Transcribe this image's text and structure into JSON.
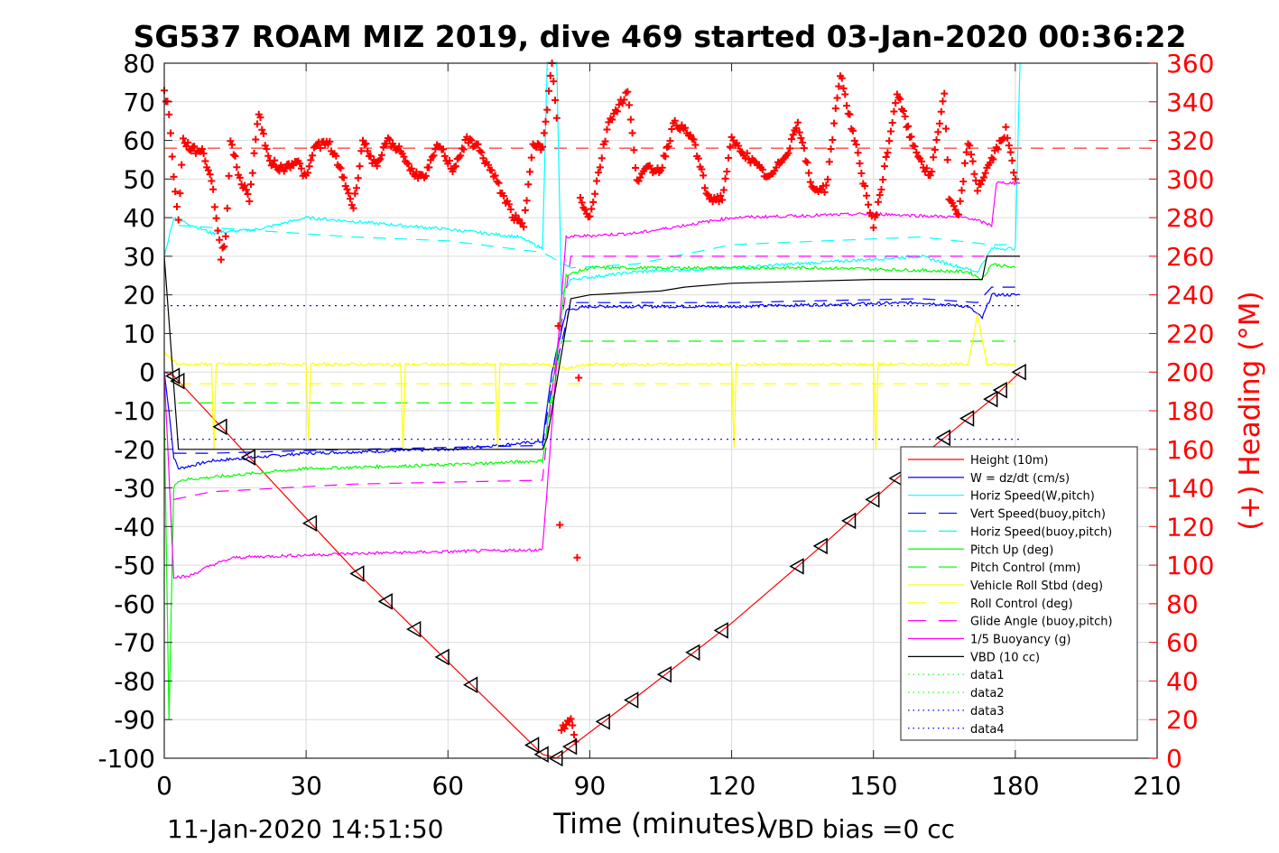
{
  "chart_data": {
    "type": "line",
    "title": "SG537 ROAM MIZ 2019, dive 469 started 03-Jan-2020 00:36:22",
    "xlabel": "Time (minutes)",
    "ylabel_right": "(+) Heading (°M)",
    "footer_left": "11-Jan-2020 14:51:50",
    "footer_right": "VBD bias =0 cc",
    "xlim": [
      0,
      210
    ],
    "ylim": [
      -100,
      80
    ],
    "ylim_right": [
      0,
      360
    ],
    "xticks": [
      "0",
      "30",
      "60",
      "90",
      "120",
      "150",
      "180",
      "210"
    ],
    "yticks": [
      "80",
      "70",
      "60",
      "50",
      "40",
      "30",
      "20",
      "10",
      "0",
      "-10",
      "-20",
      "-30",
      "-40",
      "-50",
      "-60",
      "-70",
      "-80",
      "-90",
      "-100"
    ],
    "yticks_right": [
      "360",
      "340",
      "320",
      "300",
      "280",
      "260",
      "240",
      "220",
      "200",
      "180",
      "160",
      "140",
      "120",
      "100",
      "80",
      "60",
      "40",
      "20",
      "0"
    ],
    "grid": true,
    "legend_position": "bottom-right",
    "series": [
      {
        "name": "Height (10m)",
        "color": "#ff0000",
        "style": "solid",
        "points": [
          [
            0,
            0
          ],
          [
            2,
            -1
          ],
          [
            40,
            -51
          ],
          [
            60,
            -75
          ],
          [
            80,
            -99
          ],
          [
            83,
            -100
          ],
          [
            86,
            -97
          ],
          [
            100,
            -84
          ],
          [
            120,
            -65
          ],
          [
            140,
            -44
          ],
          [
            160,
            -22
          ],
          [
            175,
            -7
          ],
          [
            181,
            0
          ]
        ]
      },
      {
        "name": "W = dz/dt (cm/s)",
        "color": "#0000ff",
        "style": "solid",
        "points": [
          [
            0,
            0
          ],
          [
            1,
            -10
          ],
          [
            2,
            -22
          ],
          [
            3,
            -25
          ],
          [
            10,
            -23
          ],
          [
            30,
            -21
          ],
          [
            60,
            -20
          ],
          [
            80,
            -18
          ],
          [
            82,
            0
          ],
          [
            85,
            16
          ],
          [
            90,
            17
          ],
          [
            120,
            17
          ],
          [
            160,
            18
          ],
          [
            170,
            17
          ],
          [
            173,
            14
          ],
          [
            175,
            20
          ],
          [
            181,
            20
          ]
        ]
      },
      {
        "name": "Horiz Speed(W,pitch)",
        "color": "#00ffff",
        "style": "solid",
        "points": [
          [
            0,
            30
          ],
          [
            2,
            40
          ],
          [
            10,
            36
          ],
          [
            20,
            37
          ],
          [
            30,
            40
          ],
          [
            60,
            37
          ],
          [
            75,
            35
          ],
          [
            80,
            32
          ],
          [
            81,
            80
          ],
          [
            83,
            80
          ],
          [
            84,
            20
          ],
          [
            86,
            24
          ],
          [
            100,
            26
          ],
          [
            120,
            27
          ],
          [
            160,
            30
          ],
          [
            172,
            26
          ],
          [
            175,
            32
          ],
          [
            180,
            32
          ],
          [
            181,
            80
          ]
        ]
      },
      {
        "name": "Vert Speed(buoy,pitch)",
        "color": "#0000ff",
        "style": "dash",
        "points": [
          [
            2,
            -21
          ],
          [
            10,
            -21
          ],
          [
            40,
            -20
          ],
          [
            80,
            -19
          ],
          [
            82,
            -3
          ],
          [
            86,
            18
          ],
          [
            120,
            18
          ],
          [
            160,
            19
          ],
          [
            172,
            18
          ],
          [
            175,
            22
          ],
          [
            181,
            22
          ]
        ]
      },
      {
        "name": "Horiz Speed(buoy,pitch)",
        "color": "#00ffff",
        "style": "dash",
        "points": [
          [
            3,
            38
          ],
          [
            40,
            35
          ],
          [
            60,
            34
          ],
          [
            80,
            31
          ],
          [
            86,
            27
          ],
          [
            100,
            28
          ],
          [
            120,
            33
          ],
          [
            160,
            35
          ],
          [
            175,
            33
          ],
          [
            180,
            33
          ]
        ]
      },
      {
        "name": "Pitch Up (deg)",
        "color": "#00ff00",
        "style": "solid",
        "points": [
          [
            0,
            -10
          ],
          [
            1,
            -90
          ],
          [
            2,
            -30
          ],
          [
            3,
            -28
          ],
          [
            30,
            -25
          ],
          [
            60,
            -24
          ],
          [
            80,
            -23
          ],
          [
            82,
            -5
          ],
          [
            85,
            25
          ],
          [
            90,
            27
          ],
          [
            140,
            27
          ],
          [
            170,
            26
          ],
          [
            173,
            24
          ],
          [
            175,
            28
          ],
          [
            180,
            27
          ]
        ]
      },
      {
        "name": "Pitch Control (mm)",
        "color": "#00ff00",
        "style": "dash",
        "points": [
          [
            3,
            -8
          ],
          [
            80,
            -8
          ],
          [
            82,
            -8
          ],
          [
            84,
            8
          ],
          [
            180,
            8
          ]
        ]
      },
      {
        "name": "Vehicle Roll Stbd (deg)",
        "color": "#ffff00",
        "style": "solid",
        "points": [
          [
            0,
            5
          ],
          [
            3,
            2
          ],
          [
            10,
            2
          ],
          [
            10.5,
            -20
          ],
          [
            11,
            2
          ],
          [
            30,
            2
          ],
          [
            30.5,
            -18
          ],
          [
            31,
            2
          ],
          [
            50,
            2
          ],
          [
            50.5,
            -20
          ],
          [
            51,
            2
          ],
          [
            70,
            2
          ],
          [
            70.5,
            -20
          ],
          [
            71,
            2
          ],
          [
            80,
            2
          ],
          [
            85,
            1
          ],
          [
            90,
            2
          ],
          [
            120,
            2
          ],
          [
            120.5,
            -20
          ],
          [
            121,
            2
          ],
          [
            150,
            2
          ],
          [
            150.5,
            -20
          ],
          [
            151,
            2
          ],
          [
            170,
            2
          ],
          [
            172,
            15
          ],
          [
            174,
            2
          ],
          [
            180,
            2
          ]
        ]
      },
      {
        "name": "Roll Control (deg)",
        "color": "#ffff00",
        "style": "dash",
        "points": [
          [
            3,
            -3
          ],
          [
            80,
            -3
          ],
          [
            85,
            -3
          ],
          [
            180,
            -3
          ]
        ]
      },
      {
        "name": "Glide Angle (buoy,pitch)",
        "color": "#ff00ff",
        "style": "dash",
        "points": [
          [
            2,
            -33
          ],
          [
            10,
            -31
          ],
          [
            40,
            -29
          ],
          [
            80,
            -28
          ],
          [
            82,
            -5
          ],
          [
            86,
            30
          ],
          [
            120,
            30
          ],
          [
            160,
            30
          ],
          [
            180,
            30
          ]
        ]
      },
      {
        "name": "1/5 Buoyancy (g)",
        "color": "#ff00ff",
        "style": "solid",
        "points": [
          [
            0,
            0
          ],
          [
            2,
            -53
          ],
          [
            5,
            -53
          ],
          [
            10,
            -50
          ],
          [
            15,
            -48
          ],
          [
            40,
            -47
          ],
          [
            80,
            -46
          ],
          [
            85,
            35
          ],
          [
            100,
            36
          ],
          [
            110,
            38
          ],
          [
            120,
            40
          ],
          [
            150,
            41
          ],
          [
            170,
            40
          ],
          [
            175,
            38
          ],
          [
            176,
            49
          ],
          [
            181,
            49
          ]
        ]
      },
      {
        "name": "VBD (10 cc)",
        "color": "#000000",
        "style": "solid",
        "points": [
          [
            0,
            30
          ],
          [
            3,
            -20
          ],
          [
            80,
            -20
          ],
          [
            81,
            -17
          ],
          [
            86,
            19
          ],
          [
            90,
            20
          ],
          [
            105,
            21
          ],
          [
            110,
            22
          ],
          [
            120,
            23
          ],
          [
            150,
            24
          ],
          [
            173,
            24
          ],
          [
            174,
            30
          ],
          [
            181,
            30
          ]
        ]
      },
      {
        "name": "data1",
        "color": "#00ff00",
        "style": "dot",
        "points": []
      },
      {
        "name": "data2",
        "color": "#00ff00",
        "style": "dot",
        "points": []
      },
      {
        "name": "data3",
        "color": "#0000ff",
        "style": "dot",
        "points": [
          [
            0,
            17.2
          ],
          [
            181,
            17.2
          ]
        ]
      },
      {
        "name": "data4",
        "color": "#0000ff",
        "style": "dot",
        "points": [
          [
            0,
            -17.4
          ],
          [
            181,
            -17.4
          ]
        ]
      }
    ],
    "reference_lines": [
      {
        "axis": "right",
        "value": 316,
        "color": "#ff0000",
        "style": "dash"
      }
    ],
    "heading": {
      "name": "Heading (+)",
      "color": "#ff0000",
      "axis": "right",
      "points": [
        [
          0,
          345
        ],
        [
          1,
          335
        ],
        [
          2,
          300
        ],
        [
          3,
          280
        ],
        [
          4,
          320
        ],
        [
          6,
          315
        ],
        [
          8,
          315
        ],
        [
          10,
          300
        ],
        [
          12,
          260
        ],
        [
          13,
          270
        ],
        [
          14,
          320
        ],
        [
          16,
          300
        ],
        [
          18,
          290
        ],
        [
          20,
          335
        ],
        [
          22,
          310
        ],
        [
          25,
          305
        ],
        [
          28,
          310
        ],
        [
          30,
          300
        ],
        [
          32,
          318
        ],
        [
          35,
          318
        ],
        [
          38,
          300
        ],
        [
          40,
          285
        ],
        [
          42,
          320
        ],
        [
          45,
          305
        ],
        [
          47,
          320
        ],
        [
          50,
          315
        ],
        [
          52,
          305
        ],
        [
          55,
          300
        ],
        [
          58,
          318
        ],
        [
          61,
          305
        ],
        [
          64,
          320
        ],
        [
          66,
          318
        ],
        [
          70,
          300
        ],
        [
          74,
          280
        ],
        [
          76,
          275
        ],
        [
          78,
          320
        ],
        [
          80,
          315
        ],
        [
          82,
          360
        ],
        [
          83,
          330
        ],
        [
          84,
          15
        ],
        [
          86,
          20
        ],
        [
          87,
          10
        ],
        [
          88,
          290
        ],
        [
          90,
          280
        ],
        [
          94,
          330
        ],
        [
          98,
          345
        ],
        [
          100,
          300
        ],
        [
          102,
          305
        ],
        [
          105,
          305
        ],
        [
          108,
          330
        ],
        [
          112,
          320
        ],
        [
          115,
          290
        ],
        [
          118,
          290
        ],
        [
          120,
          320
        ],
        [
          124,
          310
        ],
        [
          128,
          300
        ],
        [
          132,
          315
        ],
        [
          134,
          330
        ],
        [
          137,
          295
        ],
        [
          140,
          295
        ],
        [
          143,
          355
        ],
        [
          146,
          320
        ],
        [
          150,
          275
        ],
        [
          152,
          300
        ],
        [
          155,
          345
        ],
        [
          158,
          320
        ],
        [
          162,
          300
        ],
        [
          165,
          345
        ],
        [
          166,
          290
        ],
        [
          168,
          280
        ],
        [
          170,
          320
        ],
        [
          172,
          295
        ],
        [
          175,
          310
        ],
        [
          178,
          325
        ],
        [
          180,
          300
        ]
      ]
    },
    "markers": {
      "name": "Height markers",
      "symbol": "triangle-left",
      "times": [
        2,
        3,
        12,
        18,
        31,
        41,
        47,
        53,
        59,
        65,
        78,
        80,
        83,
        86,
        93,
        99,
        106,
        112,
        118,
        134,
        139,
        145,
        150,
        155,
        165,
        170,
        175,
        177,
        181
      ]
    }
  }
}
